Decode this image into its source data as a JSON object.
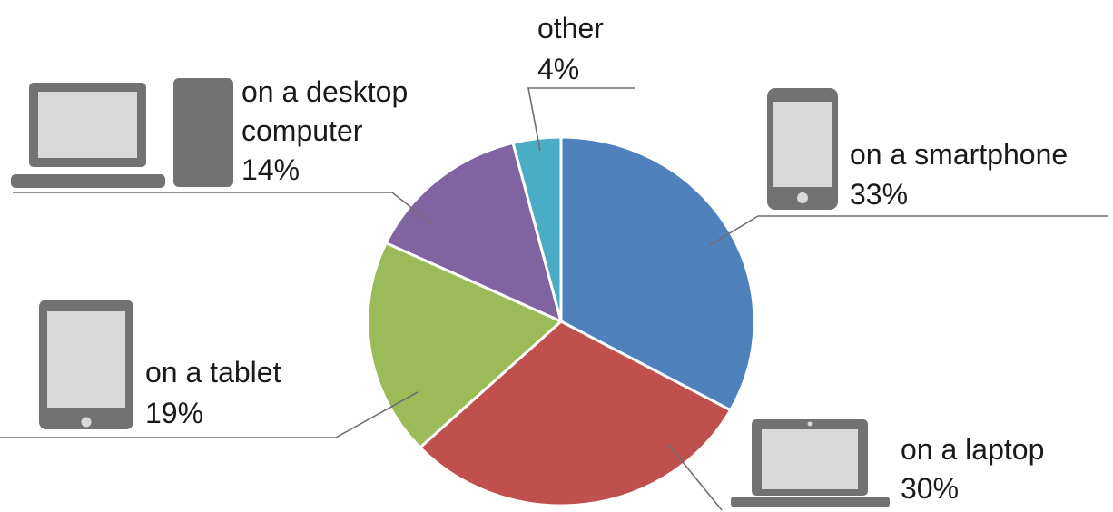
{
  "chart_data": {
    "type": "pie",
    "slices": [
      {
        "key": "smartphone",
        "label_lines": [
          "on a smartphone"
        ],
        "value": 33,
        "value_label": "33%",
        "color": "#4f81bd",
        "icon": "smartphone-icon"
      },
      {
        "key": "laptop",
        "label_lines": [
          "on a laptop"
        ],
        "value": 30,
        "value_label": "30%",
        "color": "#c0504d",
        "icon": "laptop-icon"
      },
      {
        "key": "tablet",
        "label_lines": [
          "on a tablet"
        ],
        "value": 19,
        "value_label": "19%",
        "color": "#9bbb59",
        "icon": "tablet-icon"
      },
      {
        "key": "desktop",
        "label_lines": [
          "on a desktop",
          "computer"
        ],
        "value": 14,
        "value_label": "14%",
        "color": "#8064a2",
        "icon": "desktop-computer-icon"
      },
      {
        "key": "other",
        "label_lines": [
          "other"
        ],
        "value": 4,
        "value_label": "4%",
        "color": "#4bacc6",
        "icon": ""
      }
    ],
    "start_angle_deg": 0,
    "direction": "clockwise",
    "legend": "none",
    "data_labels": "outside-with-leader-lines"
  }
}
